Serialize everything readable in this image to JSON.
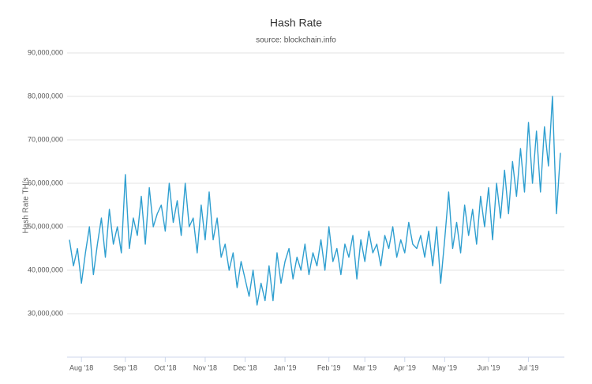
{
  "chart_data": {
    "type": "line",
    "title": "Hash Rate",
    "subtitle": "source: blockchain.info",
    "y_label": "Hash Rate TH/s",
    "color": "#2f9fd0",
    "grid": true,
    "categories": [
      null,
      null,
      null,
      "Aug '18",
      null,
      null,
      null,
      null,
      null,
      null,
      null,
      null,
      null,
      null,
      "Sep '18",
      null,
      null,
      null,
      null,
      null,
      null,
      null,
      null,
      null,
      "Oct '18",
      null,
      null,
      null,
      null,
      null,
      null,
      null,
      null,
      null,
      "Nov '18",
      null,
      null,
      null,
      null,
      null,
      null,
      null,
      null,
      null,
      "Dec '18",
      null,
      null,
      null,
      null,
      null,
      null,
      null,
      null,
      null,
      "Jan '19",
      null,
      null,
      null,
      null,
      null,
      null,
      null,
      null,
      null,
      null,
      "Feb '19",
      null,
      null,
      null,
      null,
      null,
      null,
      null,
      null,
      "Mar '19",
      null,
      null,
      null,
      null,
      null,
      null,
      null,
      null,
      null,
      "Apr '19",
      null,
      null,
      null,
      null,
      null,
      null,
      null,
      null,
      null,
      "May '19",
      null,
      null,
      null,
      null,
      null,
      null,
      null,
      null,
      null,
      null,
      "Jun '19",
      null,
      null,
      null,
      null,
      null,
      null,
      null,
      null,
      null,
      "Jul '19",
      null,
      null,
      null,
      null,
      null,
      null,
      null,
      null
    ],
    "values": [
      47000000,
      41000000,
      45000000,
      37000000,
      44000000,
      50000000,
      39000000,
      46000000,
      52000000,
      43000000,
      54000000,
      46000000,
      50000000,
      44000000,
      62000000,
      45000000,
      52000000,
      48000000,
      57000000,
      46000000,
      59000000,
      50000000,
      53000000,
      55000000,
      49000000,
      60000000,
      51000000,
      56000000,
      48000000,
      60000000,
      50000000,
      52000000,
      44000000,
      55000000,
      47000000,
      58000000,
      47000000,
      52000000,
      43000000,
      46000000,
      40000000,
      44000000,
      36000000,
      42000000,
      38000000,
      34000000,
      40000000,
      32000000,
      37000000,
      33000000,
      41000000,
      33000000,
      44000000,
      37000000,
      42000000,
      45000000,
      38000000,
      43000000,
      40000000,
      46000000,
      39000000,
      44000000,
      41000000,
      47000000,
      40000000,
      50000000,
      42000000,
      45000000,
      39000000,
      46000000,
      43000000,
      48000000,
      38000000,
      47000000,
      42000000,
      49000000,
      44000000,
      46000000,
      41000000,
      48000000,
      45000000,
      50000000,
      43000000,
      47000000,
      44000000,
      51000000,
      46000000,
      45000000,
      48000000,
      43000000,
      49000000,
      41000000,
      50000000,
      37000000,
      47000000,
      58000000,
      45000000,
      51000000,
      44000000,
      55000000,
      48000000,
      54000000,
      46000000,
      57000000,
      50000000,
      59000000,
      47000000,
      60000000,
      52000000,
      63000000,
      53000000,
      65000000,
      57000000,
      68000000,
      58000000,
      74000000,
      60000000,
      72000000,
      58000000,
      73000000,
      64000000,
      80000000,
      53000000,
      67000000
    ],
    "ylim": [
      20000000,
      90000000
    ],
    "yticks": [
      {
        "value": 30000000,
        "label": "30,000,000"
      },
      {
        "value": 40000000,
        "label": "40,000,000"
      },
      {
        "value": 50000000,
        "label": "50,000,000"
      },
      {
        "value": 60000000,
        "label": "60,000,000"
      },
      {
        "value": 70000000,
        "label": "70,000,000"
      },
      {
        "value": 80000000,
        "label": "80,000,000"
      },
      {
        "value": 90000000,
        "label": "90,000,000"
      }
    ]
  }
}
